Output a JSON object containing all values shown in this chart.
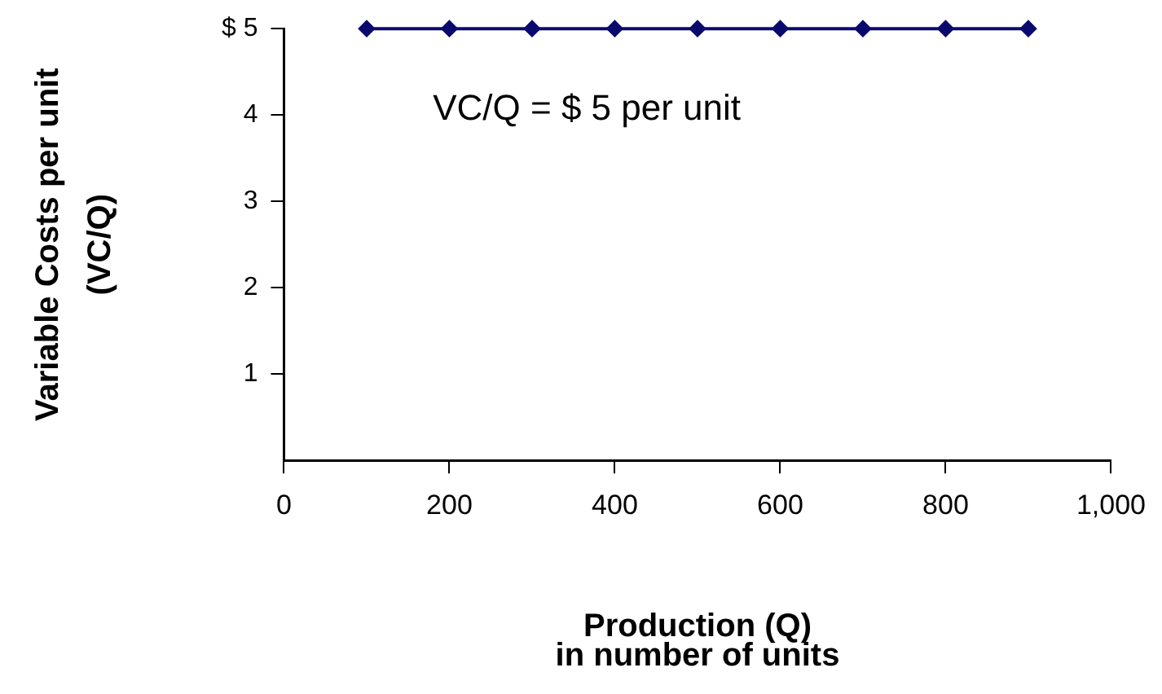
{
  "chart_data": {
    "type": "line",
    "xlabel": "Production (Q)\nin number of units",
    "ylabel": "Variable Costs per unit\n(VC/Q)",
    "x": [
      100,
      200,
      300,
      400,
      500,
      600,
      700,
      800,
      900
    ],
    "series": [
      {
        "color": "#0a0a6e",
        "values": [
          5,
          5,
          5,
          5,
          5,
          5,
          5,
          5,
          5
        ]
      }
    ],
    "xlim": [
      0,
      1000
    ],
    "xticks": [
      0,
      200,
      400,
      600,
      800,
      {
        "value": 1000,
        "label": "1,000"
      }
    ],
    "ylim": [
      0,
      5
    ],
    "yticks": [
      1,
      2,
      3,
      4,
      {
        "value": 5,
        "label": "$ 5"
      }
    ],
    "annotations": [
      "VC/Q = $ 5 per unit"
    ],
    "grid": false,
    "legend": false,
    "marker": "diamond",
    "line_style": "solid"
  }
}
